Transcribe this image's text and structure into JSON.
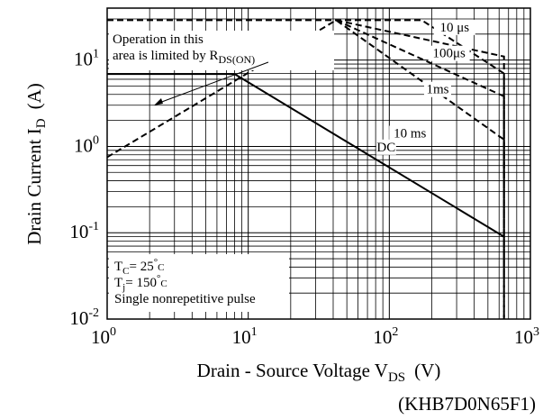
{
  "chart_data": {
    "type": "line",
    "title": "",
    "xlabel": "Drain - Source Voltage V",
    "xlabel_sub": "DS",
    "xlabel_unit": "(V)",
    "ylabel": "Drain Current I",
    "ylabel_sub": "D",
    "ylabel_unit": "(A)",
    "x_scale": "log",
    "y_scale": "log",
    "xlim": [
      1,
      1000
    ],
    "ylim": [
      0.01,
      40
    ],
    "grid": true,
    "x_ticks": [
      {
        "base": "10",
        "exp": "0",
        "value": 1
      },
      {
        "base": "10",
        "exp": "1",
        "value": 10
      },
      {
        "base": "10",
        "exp": "2",
        "value": 100
      },
      {
        "base": "10",
        "exp": "3",
        "value": 1000
      }
    ],
    "y_ticks": [
      {
        "base": "10",
        "exp": "-2",
        "value": 0.01
      },
      {
        "base": "10",
        "exp": "-1",
        "value": 0.1
      },
      {
        "base": "10",
        "exp": "0",
        "value": 1
      },
      {
        "base": "10",
        "exp": "1",
        "value": 10
      }
    ],
    "series": [
      {
        "name": "DC",
        "style": "solid",
        "points": [
          [
            8,
            6.9
          ],
          [
            650,
            0.09
          ]
        ],
        "label_at": [
          95,
          0.9
        ]
      },
      {
        "name": "10 ms",
        "style": "dashed",
        "points": [
          [
            1,
            0.75
          ],
          [
            42,
            29
          ],
          [
            650,
            1.2
          ],
          [
            650,
            0.4
          ]
        ],
        "label_at": [
          140,
          1.3
        ]
      },
      {
        "name": "1ms",
        "style": "dashed",
        "points": [
          [
            42,
            29
          ],
          [
            650,
            3.8
          ],
          [
            650,
            0.03
          ]
        ],
        "label_at": [
          220,
          4.2
        ]
      },
      {
        "name": "100μs",
        "style": "dashed",
        "points": [
          [
            42,
            29
          ],
          [
            650,
            11
          ],
          [
            650,
            0.01
          ]
        ],
        "label_at": [
          265,
          11
        ]
      },
      {
        "name": "10 μs",
        "style": "dashed",
        "points": [
          [
            1,
            29
          ],
          [
            170,
            29
          ],
          [
            650,
            7
          ],
          [
            650,
            0.01
          ]
        ],
        "label_at": [
          290,
          22
        ]
      },
      {
        "name": "",
        "style": "solid",
        "points": [
          [
            8,
            6.9
          ],
          [
            1,
            6.9
          ]
        ]
      }
    ],
    "annotations": {
      "rds_line1": "Operation in this",
      "rds_line2": "area is limited by R",
      "rds_sub": "DS(ON)",
      "tc_label": "T",
      "tc_sub": "C",
      "tc_value": "= 25",
      "tc_unit": "C",
      "tj_label": "T",
      "tj_sub": "j",
      "tj_value": "= 150",
      "tj_unit": "C",
      "pulse_note": "Single nonrepetitive pulse",
      "degree": "°"
    },
    "part_number": "(KHB7D0N65F1)",
    "line_color": "#000000",
    "grid_color": "#000000"
  }
}
